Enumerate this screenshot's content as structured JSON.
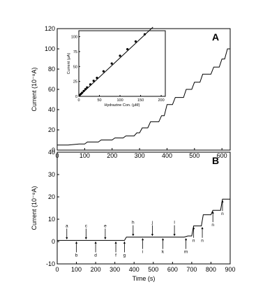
{
  "chart_data": [
    {
      "id": "A",
      "type": "line",
      "panel_label": "A",
      "xlabel": "",
      "ylabel": "Current (10⁻⁸A)",
      "xlim": [
        0,
        630
      ],
      "ylim": [
        0,
        120
      ],
      "xticks": [
        0,
        100,
        200,
        300,
        400,
        500,
        600
      ],
      "yticks": [
        0,
        20,
        40,
        60,
        80,
        100,
        120
      ],
      "series": [
        {
          "x": [
            0,
            40,
            80,
            100,
            110,
            150,
            160,
            200,
            210,
            240,
            250,
            280,
            290,
            300,
            310,
            330,
            340,
            370,
            380,
            390,
            400,
            420,
            430,
            460,
            470,
            490,
            500,
            520,
            530,
            560,
            570,
            590,
            600,
            610,
            620,
            630
          ],
          "y": [
            5,
            5,
            6,
            6,
            8,
            8,
            10,
            10,
            12,
            12,
            14,
            14,
            17,
            17,
            22,
            22,
            28,
            28,
            34,
            34,
            45,
            45,
            52,
            52,
            60,
            60,
            67,
            67,
            75,
            75,
            82,
            82,
            90,
            90,
            100,
            100
          ]
        }
      ]
    },
    {
      "id": "A-inset",
      "type": "scatter",
      "xlabel": "Hydrazine Con. (μM)",
      "ylabel": "Current (μA)",
      "xlim": [
        0,
        210
      ],
      "ylim": [
        0,
        110
      ],
      "xticks": [
        0,
        50,
        100,
        150,
        200
      ],
      "yticks": [
        0,
        25,
        50,
        75,
        100
      ],
      "series": [
        {
          "x": [
            2,
            5,
            8,
            12,
            16,
            20,
            28,
            36,
            44,
            60,
            80,
            100,
            118,
            138,
            160
          ],
          "y": [
            2,
            4,
            6,
            9,
            12,
            15,
            20,
            26,
            31,
            42,
            55,
            68,
            79,
            92,
            104
          ]
        }
      ],
      "fit": {
        "x": [
          0,
          180
        ],
        "y": [
          0,
          116
        ]
      }
    },
    {
      "id": "B",
      "type": "line",
      "panel_label": "B",
      "xlabel": "Time (s)",
      "ylabel": "Current (10⁻⁸A)",
      "xlim": [
        0,
        900
      ],
      "ylim": [
        -10,
        40
      ],
      "xticks": [
        0,
        100,
        200,
        300,
        400,
        500,
        600,
        700,
        800,
        900
      ],
      "yticks": [
        -10,
        0,
        10,
        20,
        30,
        40
      ],
      "series": [
        {
          "x": [
            0,
            350,
            360,
            660,
            680,
            700,
            710,
            750,
            760,
            800,
            810,
            850,
            860,
            900
          ],
          "y": [
            0.5,
            0.5,
            2,
            2,
            2.5,
            2.5,
            7,
            7,
            12,
            12,
            14,
            14,
            19,
            19
          ]
        }
      ],
      "annotations": [
        {
          "label": "a",
          "x": 50,
          "side": "above"
        },
        {
          "label": "b",
          "x": 100,
          "side": "below"
        },
        {
          "label": "c",
          "x": 150,
          "side": "above"
        },
        {
          "label": "d",
          "x": 200,
          "side": "below"
        },
        {
          "label": "e",
          "x": 250,
          "side": "above"
        },
        {
          "label": "f",
          "x": 305,
          "side": "below"
        },
        {
          "label": "g",
          "x": 350,
          "side": "below"
        },
        {
          "label": "h",
          "x": 395,
          "side": "above"
        },
        {
          "label": "i",
          "x": 445,
          "side": "below"
        },
        {
          "label": "j",
          "x": 495,
          "side": "above"
        },
        {
          "label": "k",
          "x": 550,
          "side": "below"
        },
        {
          "label": "l",
          "x": 610,
          "side": "above"
        },
        {
          "label": "m",
          "x": 670,
          "side": "below"
        },
        {
          "label": "n",
          "x": 710,
          "side": "below"
        },
        {
          "label": "n",
          "x": 755,
          "side": "below"
        },
        {
          "label": "n",
          "x": 810,
          "side": "below"
        },
        {
          "label": "n",
          "x": 860,
          "side": "below"
        }
      ]
    }
  ]
}
